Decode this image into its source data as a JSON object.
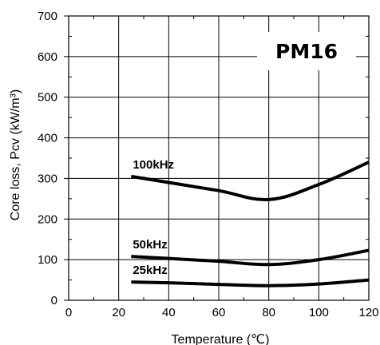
{
  "chart_data": {
    "type": "line",
    "title": "PM16",
    "xlabel": "Temperature (℃)",
    "ylabel": "Core loss, Pcv (kW/m³)",
    "xlim": [
      0,
      120
    ],
    "ylim": [
      0,
      700
    ],
    "xticks": [
      0,
      20,
      40,
      60,
      80,
      100,
      120
    ],
    "yticks": [
      0,
      100,
      200,
      300,
      400,
      500,
      600,
      700
    ],
    "grid": true,
    "series": [
      {
        "name": "100kHz",
        "x": [
          25,
          40,
          60,
          80,
          100,
          120
        ],
        "values": [
          305,
          290,
          270,
          248,
          285,
          340
        ]
      },
      {
        "name": "50kHz",
        "x": [
          25,
          40,
          60,
          80,
          100,
          120
        ],
        "values": [
          108,
          103,
          96,
          88,
          100,
          123
        ]
      },
      {
        "name": "25kHz",
        "x": [
          25,
          40,
          60,
          80,
          100,
          120
        ],
        "values": [
          45,
          43,
          39,
          36,
          40,
          50
        ]
      }
    ]
  }
}
